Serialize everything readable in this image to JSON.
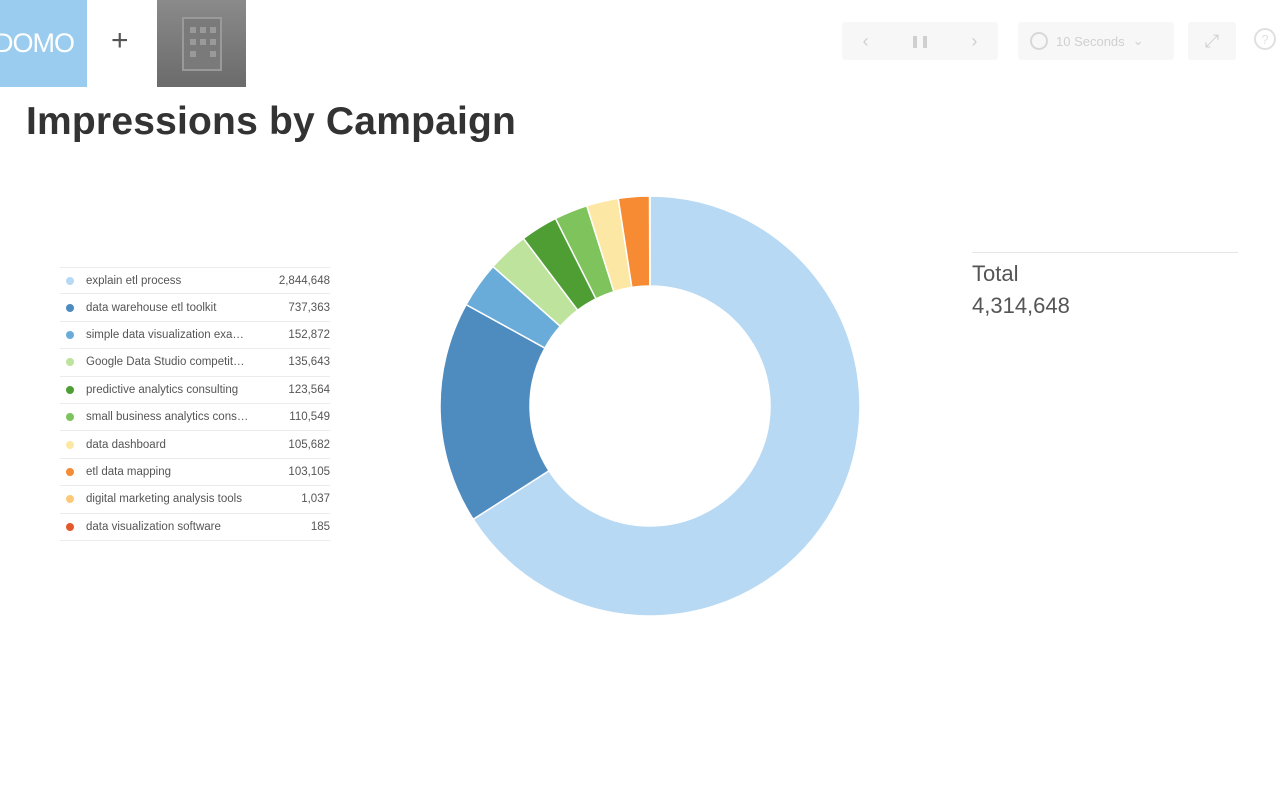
{
  "header": {
    "logo_text": "DOMO",
    "plus": "+",
    "prev_icon": "‹",
    "pause_icon": "❚❚",
    "next_icon": "›",
    "interval_label": "10 Seconds",
    "interval_chevron": "⌄",
    "fullscreen_icon": "⤢",
    "help_icon": "?"
  },
  "page": {
    "title": "Impressions by Campaign"
  },
  "total": {
    "label": "Total",
    "value": "4,314,648"
  },
  "colors": {
    "logo_bg": "#99ccee"
  },
  "chart_data": {
    "type": "pie",
    "donut": true,
    "title": "Impressions by Campaign",
    "legend_position": "left",
    "series": [
      {
        "name": "explain etl process",
        "value": 2844648,
        "display": "2,844,648",
        "color": "#b7d9f4"
      },
      {
        "name": "data warehouse etl toolkit",
        "value": 737363,
        "display": "737,363",
        "color": "#4e8bbf"
      },
      {
        "name": "simple data visualization exa…",
        "value": 152872,
        "display": "152,872",
        "color": "#6aacd9"
      },
      {
        "name": "Google Data Studio competit…",
        "value": 135643,
        "display": "135,643",
        "color": "#bde39c"
      },
      {
        "name": "predictive analytics consulting",
        "value": 123564,
        "display": "123,564",
        "color": "#4e9e34"
      },
      {
        "name": "small business analytics cons…",
        "value": 110549,
        "display": "110,549",
        "color": "#7fc35c"
      },
      {
        "name": "data dashboard",
        "value": 105682,
        "display": "105,682",
        "color": "#fde7a4"
      },
      {
        "name": "etl data mapping",
        "value": 103105,
        "display": "103,105",
        "color": "#f68b33"
      },
      {
        "name": "digital marketing analysis tools",
        "value": 1037,
        "display": "1,037",
        "color": "#fcc97a"
      },
      {
        "name": "data visualization software",
        "value": 185,
        "display": "185",
        "color": "#e2582a"
      }
    ]
  }
}
